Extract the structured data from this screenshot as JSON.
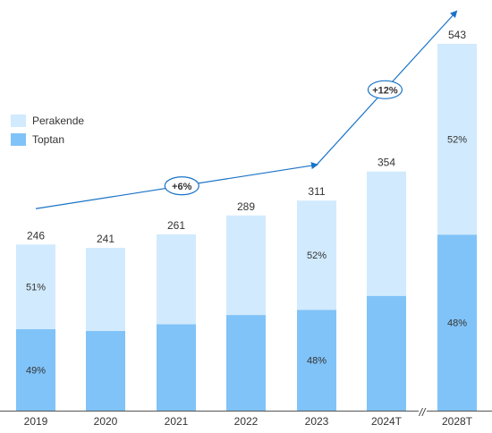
{
  "chart_data": {
    "type": "bar",
    "stacked": true,
    "categories": [
      "2019",
      "2020",
      "2021",
      "2022",
      "2023",
      "2024T",
      "2028T"
    ],
    "totals": [
      246,
      241,
      261,
      289,
      311,
      354,
      543
    ],
    "series": [
      {
        "name": "Toptan",
        "color": "#80c3f8",
        "share_pct": [
          49,
          49,
          49,
          49,
          48,
          48,
          48
        ],
        "segment_labels": [
          "49%",
          "",
          "",
          "",
          "48%",
          "",
          "48%"
        ]
      },
      {
        "name": "Perakende",
        "color": "#d1eafd",
        "share_pct": [
          51,
          51,
          51,
          51,
          52,
          52,
          52
        ],
        "segment_labels": [
          "51%",
          "",
          "",
          "",
          "52%",
          "",
          "52%"
        ]
      }
    ],
    "total_labels": [
      "246",
      "241",
      "261",
      "289",
      "311",
      "354",
      "543"
    ],
    "legend": {
      "items": [
        "Perakende",
        "Toptan"
      ],
      "position": "left"
    },
    "growth_annotations": [
      {
        "label": "+6%",
        "color": "#1a73c6"
      },
      {
        "label": "+12%",
        "color": "#1a73c6"
      }
    ],
    "axis_break_marker": "//",
    "ylim": [
      0,
      560
    ],
    "grid": false,
    "title": "",
    "xlabel": "",
    "ylabel": ""
  }
}
